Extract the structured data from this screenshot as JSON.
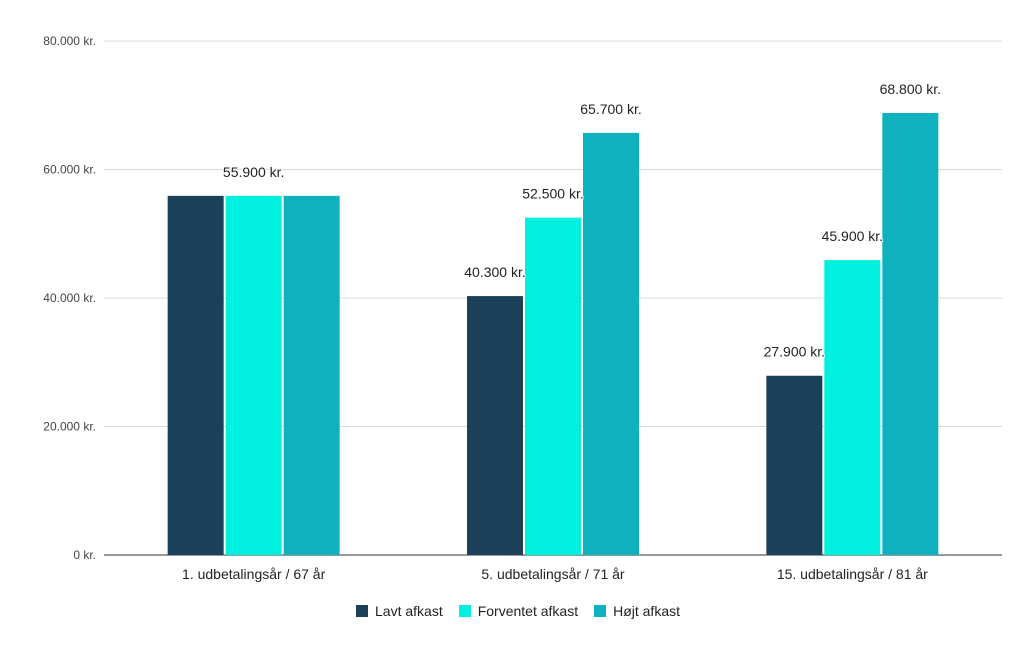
{
  "chart_data": {
    "type": "bar",
    "title": "",
    "xlabel": "",
    "ylabel": "",
    "ylim": [
      0,
      80000
    ],
    "yticks": [
      {
        "value": 0,
        "label": "0 kr."
      },
      {
        "value": 20000,
        "label": "20.000 kr."
      },
      {
        "value": 40000,
        "label": "40.000 kr."
      },
      {
        "value": 60000,
        "label": "60.000 kr."
      },
      {
        "value": 80000,
        "label": "80.000 kr."
      }
    ],
    "categories": [
      "1. udbetalingsår / 67 år",
      "5. udbetalingsår / 71 år",
      "15. udbetalingsår / 81 år"
    ],
    "series": [
      {
        "name": "Lavt afkast",
        "color": "#1b4159",
        "values": [
          55900,
          40300,
          27900
        ],
        "labels": [
          "",
          "40.300 kr.",
          "27.900 kr."
        ]
      },
      {
        "name": "Forventet afkast",
        "color": "#00f0e0",
        "values": [
          55900,
          52500,
          45900
        ],
        "labels": [
          "55.900 kr.",
          "52.500 kr.",
          "45.900 kr."
        ]
      },
      {
        "name": "Højt afkast",
        "color": "#0fb1be",
        "values": [
          55900,
          65700,
          68800
        ],
        "labels": [
          "",
          "65.700 kr.",
          "68.800 kr."
        ]
      }
    ],
    "grid": true,
    "legend_position": "bottom"
  }
}
